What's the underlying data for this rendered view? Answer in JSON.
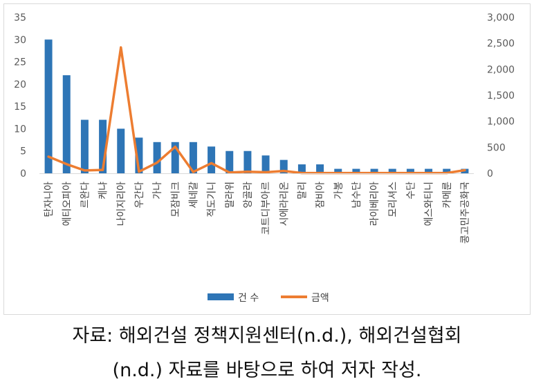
{
  "chart_data": {
    "type": "bar+line",
    "categories": [
      "탄자니아",
      "에티오피아",
      "르완다",
      "케냐",
      "나이지리아",
      "우간다",
      "가나",
      "모잠비크",
      "세네갈",
      "적도기니",
      "말라위",
      "앙골라",
      "코트디부아르",
      "시에라리온",
      "말리",
      "잠비아",
      "가봉",
      "남수단",
      "라이베리아",
      "모리셔스",
      "수단",
      "에스와티니",
      "카메룬",
      "콩고민주공화국"
    ],
    "series": [
      {
        "name": "건 수",
        "type": "bar",
        "axis": "left",
        "color": "#2E75B6",
        "values": [
          30,
          22,
          12,
          12,
          10,
          8,
          7,
          7,
          7,
          6,
          5,
          5,
          4,
          3,
          2,
          2,
          1,
          1,
          1,
          1,
          1,
          1,
          1,
          1
        ]
      },
      {
        "name": "금액",
        "type": "line",
        "axis": "right",
        "color": "#ED7D31",
        "values": [
          320,
          175,
          55,
          65,
          2420,
          30,
          205,
          510,
          25,
          195,
          15,
          30,
          20,
          45,
          5,
          5,
          5,
          5,
          5,
          5,
          5,
          5,
          5,
          60
        ]
      }
    ],
    "y_left": {
      "min": 0,
      "max": 35,
      "ticks": [
        "0",
        "5",
        "10",
        "15",
        "20",
        "25",
        "30",
        "35"
      ]
    },
    "y_right": {
      "min": 0,
      "max": 3000,
      "ticks": [
        "0",
        "500",
        "1,000",
        "1,500",
        "2,000",
        "2,500",
        "3,000"
      ]
    },
    "grid": false,
    "legend": "bottom"
  },
  "source": {
    "line1": "자료:  해외건설  정책지원센터(n.d.),  해외건설협회",
    "line2": "(n.d.) 자료를 바탕으로 하여 저자 작성."
  }
}
